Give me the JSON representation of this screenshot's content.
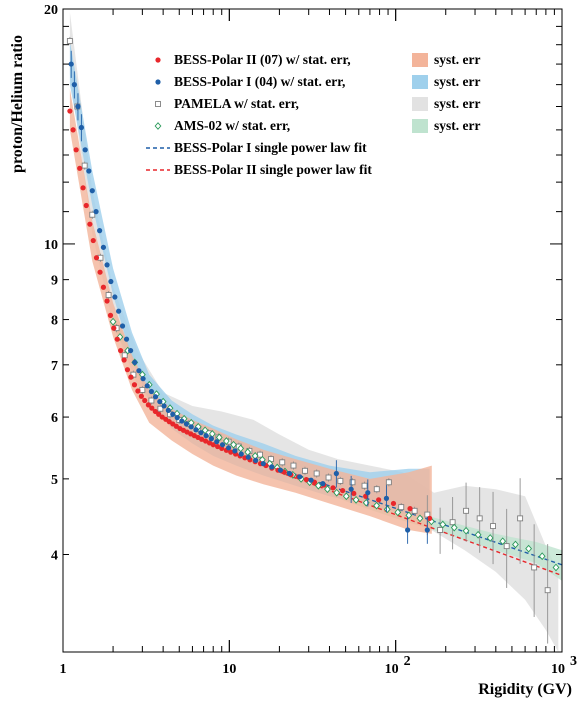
{
  "chart_data": {
    "type": "scatter",
    "title": "",
    "xlabel": "Rigidity (GV)",
    "ylabel": "proton/Helium ratio",
    "xscale": "log",
    "yscale": "log",
    "xlim": [
      1,
      1000
    ],
    "ylim": [
      3.0,
      20
    ],
    "grid": false,
    "legend_position": "top-right",
    "x_ticks": [
      {
        "value": 1,
        "base": "1",
        "exp": ""
      },
      {
        "value": 10,
        "base": "10",
        "exp": ""
      },
      {
        "value": 100,
        "base": "10",
        "exp": "2"
      },
      {
        "value": 1000,
        "base": "10",
        "exp": "3"
      }
    ],
    "y_ticks": [
      {
        "value": 4,
        "label": "4"
      },
      {
        "value": 5,
        "label": "5"
      },
      {
        "value": 6,
        "label": "6"
      },
      {
        "value": 7,
        "label": "7"
      },
      {
        "value": 8,
        "label": "8"
      },
      {
        "value": 9,
        "label": "9"
      },
      {
        "value": 10,
        "label": "10"
      },
      {
        "value": 20,
        "label": "20"
      }
    ],
    "legend": [
      {
        "label": "BESS-Polar II (07) w/ stat. err,",
        "marker": "dot",
        "color": "#e8272b",
        "syst_label": "syst. err",
        "syst_color": "#f3b49a"
      },
      {
        "label": "BESS-Polar I  (04) w/ stat. err,",
        "marker": "dot",
        "color": "#1f5fa8",
        "syst_label": "syst. err",
        "syst_color": "#9fd0ec"
      },
      {
        "label": "PAMELA w/ stat. err,",
        "marker": "open-square",
        "color": "#808080",
        "syst_label": "syst. err",
        "syst_color": "#e2e2e2"
      },
      {
        "label": "AMS-02 w/ stat. err,",
        "marker": "open-diamond",
        "color": "#2a9a5a",
        "syst_label": "syst. err",
        "syst_color": "#bfe3cf"
      },
      {
        "label": "BESS-Polar I   single power law fit",
        "marker": "dashed-line",
        "color": "#1f5fa8"
      },
      {
        "label": "BESS-Polar II single power law fit",
        "marker": "dashed-line",
        "color": "#e8272b"
      }
    ],
    "series": [
      {
        "name": "BESS-Polar II (07)",
        "color": "#e8272b",
        "x": [
          1.1,
          1.15,
          1.2,
          1.26,
          1.32,
          1.38,
          1.45,
          1.52,
          1.59,
          1.67,
          1.75,
          1.84,
          1.93,
          2.02,
          2.12,
          2.22,
          2.33,
          2.44,
          2.56,
          2.69,
          2.82,
          2.96,
          3.1,
          3.26,
          3.42,
          3.59,
          3.76,
          3.95,
          4.15,
          4.35,
          4.57,
          4.8,
          5.05,
          5.3,
          5.57,
          5.86,
          6.16,
          6.48,
          6.82,
          7.2,
          7.6,
          8.0,
          8.5,
          9.0,
          9.6,
          10.2,
          10.9,
          11.6,
          12.4,
          13.3,
          14.3,
          15.4,
          16.6,
          18.0,
          19.6,
          21.4,
          23.5,
          26.0,
          29.0,
          32.5,
          37.0,
          42.0,
          48.0,
          56.0,
          66.0,
          79.0,
          97.0,
          122.0,
          160.0
        ],
        "y": [
          14.8,
          14.0,
          13.2,
          12.5,
          11.8,
          11.2,
          10.6,
          10.1,
          9.6,
          9.2,
          8.8,
          8.45,
          8.1,
          7.8,
          7.55,
          7.3,
          7.1,
          6.9,
          6.75,
          6.6,
          6.48,
          6.38,
          6.3,
          6.22,
          6.16,
          6.1,
          6.05,
          6.0,
          5.96,
          5.92,
          5.88,
          5.84,
          5.8,
          5.77,
          5.74,
          5.71,
          5.68,
          5.65,
          5.62,
          5.59,
          5.56,
          5.53,
          5.5,
          5.47,
          5.44,
          5.41,
          5.38,
          5.35,
          5.32,
          5.29,
          5.26,
          5.23,
          5.2,
          5.16,
          5.13,
          5.1,
          5.06,
          5.03,
          4.99,
          4.95,
          4.91,
          4.87,
          4.83,
          4.79,
          4.75,
          4.7,
          4.65,
          4.58,
          4.45
        ]
      },
      {
        "name": "BESS-Polar I (04)",
        "color": "#1f5fa8",
        "x": [
          1.12,
          1.17,
          1.23,
          1.29,
          1.36,
          1.43,
          1.5,
          1.58,
          1.66,
          1.75,
          1.84,
          1.94,
          2.05,
          2.16,
          2.28,
          2.41,
          2.55,
          2.7,
          2.86,
          3.03,
          3.21,
          3.4,
          3.6,
          3.82,
          4.05,
          4.3,
          4.57,
          4.86,
          5.18,
          5.52,
          5.9,
          6.3,
          6.75,
          7.25,
          7.8,
          8.4,
          9.1,
          9.9,
          10.8,
          11.8,
          13.0,
          14.4,
          16.0,
          18.0,
          20.3,
          23.0,
          26.5,
          31.0,
          36.5,
          44.0,
          54.0,
          68.0,
          88.0,
          118.0,
          155.0
        ],
        "y": [
          17.0,
          16.0,
          15.0,
          14.1,
          13.2,
          12.4,
          11.7,
          11.0,
          10.4,
          9.9,
          9.4,
          8.95,
          8.55,
          8.2,
          7.85,
          7.55,
          7.3,
          7.05,
          6.88,
          6.72,
          6.58,
          6.47,
          6.37,
          6.28,
          6.2,
          6.12,
          6.05,
          5.99,
          5.93,
          5.88,
          5.83,
          5.78,
          5.73,
          5.68,
          5.63,
          5.58,
          5.53,
          5.48,
          5.43,
          5.38,
          5.33,
          5.28,
          5.23,
          5.18,
          5.13,
          5.08,
          5.03,
          4.98,
          4.93,
          5.08,
          4.85,
          4.8,
          4.72,
          4.3,
          4.3
        ]
      },
      {
        "name": "PAMELA",
        "color": "#808080",
        "x": [
          1.1,
          1.22,
          1.35,
          1.5,
          1.68,
          1.88,
          2.1,
          2.35,
          2.65,
          3.0,
          3.4,
          3.85,
          4.4,
          5.0,
          5.7,
          6.5,
          7.5,
          8.6,
          9.9,
          11.4,
          13.2,
          15.3,
          17.8,
          20.8,
          24.3,
          28.5,
          33.5,
          39.5,
          46.5,
          55.0,
          65.0,
          77.0,
          91.0,
          108.0,
          130.0,
          155.0,
          185.0,
          220.0,
          265.0,
          320.0,
          385.0,
          465.0,
          560.0,
          680.0,
          820.0
        ],
        "y": [
          18.2,
          15.0,
          12.6,
          10.9,
          9.6,
          8.6,
          7.8,
          7.2,
          6.8,
          6.5,
          6.3,
          6.15,
          6.05,
          5.95,
          5.88,
          5.8,
          5.72,
          5.65,
          5.58,
          5.5,
          5.43,
          5.37,
          5.3,
          5.25,
          5.2,
          5.12,
          5.08,
          5.02,
          4.97,
          4.95,
          4.9,
          4.85,
          4.95,
          4.6,
          4.55,
          4.5,
          4.3,
          4.4,
          4.55,
          4.45,
          4.35,
          4.1,
          4.45,
          3.85,
          3.6
        ]
      },
      {
        "name": "AMS-02",
        "color": "#2a9a5a",
        "x": [
          2.0,
          2.2,
          2.45,
          2.7,
          3.0,
          3.3,
          3.65,
          4.0,
          4.4,
          4.85,
          5.35,
          5.9,
          6.5,
          7.15,
          7.9,
          8.7,
          9.6,
          10.6,
          11.7,
          12.9,
          14.3,
          15.8,
          17.5,
          19.4,
          21.6,
          24.1,
          27.0,
          30.4,
          34.3,
          38.9,
          44.2,
          50.5,
          57.8,
          66.5,
          76.8,
          89.0,
          103.0,
          120.0,
          140.0,
          164.0,
          192.0,
          225.0,
          265.0,
          313.0,
          370.0,
          440.0,
          525.0,
          630.0,
          760.0,
          920.0
        ],
        "y": [
          7.95,
          7.6,
          7.3,
          7.05,
          6.8,
          6.6,
          6.42,
          6.28,
          6.16,
          6.06,
          5.97,
          5.9,
          5.83,
          5.77,
          5.71,
          5.65,
          5.59,
          5.53,
          5.47,
          5.41,
          5.35,
          5.29,
          5.23,
          5.17,
          5.11,
          5.06,
          5.0,
          4.95,
          4.9,
          4.85,
          4.8,
          4.75,
          4.7,
          4.66,
          4.62,
          4.57,
          4.53,
          4.49,
          4.45,
          4.41,
          4.37,
          4.33,
          4.29,
          4.24,
          4.2,
          4.16,
          4.12,
          4.07,
          3.98,
          3.85
        ]
      }
    ],
    "fits": [
      {
        "name": "BESS-Polar I single power law fit",
        "color": "#1f5fa8",
        "x": [
          20,
          1000
        ],
        "y": [
          5.15,
          3.88
        ]
      },
      {
        "name": "BESS-Polar II single power law fit",
        "color": "#e8272b",
        "x": [
          20,
          1000
        ],
        "y": [
          5.1,
          3.76
        ]
      }
    ],
    "syst_bands": [
      {
        "name": "BESS-Polar II syst",
        "color": "#f3b49a",
        "x": [
          1.1,
          1.5,
          2.0,
          2.6,
          3.3,
          4.5,
          6.0,
          8.0,
          11.0,
          16.0,
          25.0,
          40.0,
          70.0,
          120.0,
          165.0
        ],
        "lo": [
          14.0,
          9.5,
          7.6,
          6.5,
          5.9,
          5.6,
          5.38,
          5.2,
          5.05,
          4.92,
          4.8,
          4.65,
          4.48,
          4.3,
          4.25
        ],
        "hi": [
          15.8,
          10.7,
          8.4,
          7.2,
          6.5,
          6.15,
          5.95,
          5.8,
          5.62,
          5.45,
          5.3,
          5.15,
          5.0,
          5.1,
          5.2
        ]
      },
      {
        "name": "BESS-Polar I syst",
        "color": "#9fd0ec",
        "x": [
          1.1,
          1.5,
          2.0,
          2.6,
          3.3,
          4.5,
          6.0,
          8.0,
          11.0,
          16.0,
          25.0,
          40.0,
          70.0,
          120.0,
          160.0
        ],
        "lo": [
          16.0,
          11.2,
          8.6,
          7.1,
          6.3,
          5.8,
          5.55,
          5.35,
          5.2,
          5.05,
          4.9,
          4.75,
          4.62,
          4.5,
          4.5
        ],
        "hi": [
          18.2,
          12.4,
          9.3,
          7.7,
          6.8,
          6.3,
          6.05,
          5.85,
          5.7,
          5.55,
          5.35,
          5.2,
          5.1,
          5.15,
          5.15
        ]
      },
      {
        "name": "PAMELA syst",
        "color": "#e2e2e2",
        "x": [
          1.1,
          1.5,
          2.0,
          2.8,
          4.0,
          6.0,
          9.0,
          14.0,
          20.0,
          30.0,
          45.0,
          70.0,
          110.0,
          170.0,
          260.0,
          400.0,
          600.0,
          800.0,
          950.0
        ],
        "lo": [
          16.5,
          10.3,
          7.9,
          6.6,
          6.0,
          5.7,
          5.5,
          5.3,
          5.15,
          5.0,
          4.88,
          4.72,
          4.5,
          4.28,
          4.05,
          3.8,
          3.5,
          3.2,
          3.0
        ],
        "hi": [
          19.8,
          11.7,
          8.8,
          7.3,
          6.45,
          6.2,
          6.1,
          5.95,
          5.7,
          5.45,
          5.3,
          5.2,
          5.1,
          4.8,
          4.9,
          4.85,
          4.75,
          4.1,
          3.8
        ]
      },
      {
        "name": "AMS-02 syst",
        "color": "#bfe3cf",
        "x": [
          2.0,
          3.0,
          5.0,
          10.0,
          20.0,
          50.0,
          100.0,
          200.0,
          400.0,
          700.0,
          1000.0
        ],
        "lo": [
          7.8,
          6.7,
          5.9,
          5.45,
          5.1,
          4.68,
          4.45,
          4.25,
          4.05,
          3.9,
          3.7
        ],
        "hi": [
          8.1,
          6.9,
          6.05,
          5.62,
          5.25,
          4.82,
          4.6,
          4.42,
          4.25,
          4.15,
          4.05
        ]
      }
    ]
  }
}
